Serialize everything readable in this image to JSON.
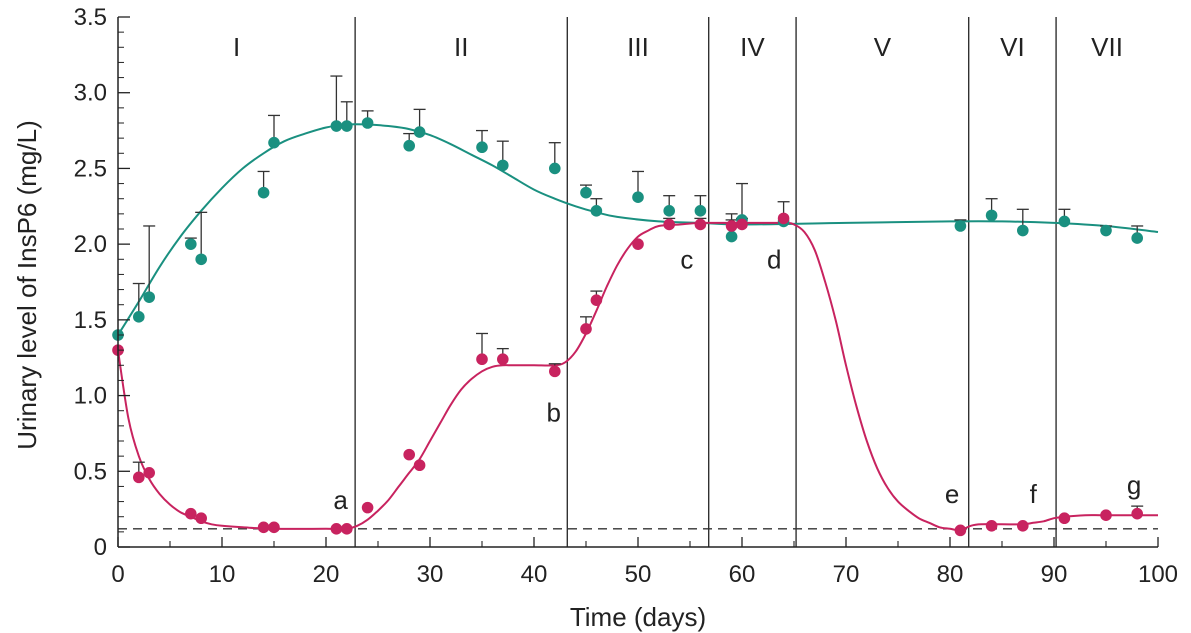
{
  "chart_data": {
    "type": "scatter",
    "title": "",
    "xlabel": "Time (days)",
    "ylabel": "Urinary level of InsP6 (mg/L)",
    "xlim": [
      0,
      100
    ],
    "ylim": [
      0,
      3.5
    ],
    "x_ticks": [
      0,
      10,
      20,
      30,
      40,
      50,
      60,
      70,
      80,
      90,
      100
    ],
    "y_ticks": [
      0,
      0.5,
      1.0,
      1.5,
      2.0,
      2.5,
      3.0,
      3.5
    ],
    "x_tick_labels": [
      "0",
      "10",
      "20",
      "30",
      "40",
      "50",
      "60",
      "70",
      "80",
      "90",
      "100"
    ],
    "y_tick_labels": [
      "0",
      "0.5",
      "1.0",
      "1.5",
      "2.0",
      "2.5",
      "3.0",
      "3.5"
    ],
    "grid": false,
    "legend": "none",
    "baseline": {
      "y": 0.12,
      "style": "dashed"
    },
    "phases": [
      {
        "label": "I",
        "start": 0,
        "end": 22.8
      },
      {
        "label": "II",
        "start": 22.8,
        "end": 43.2
      },
      {
        "label": "III",
        "start": 43.2,
        "end": 56.8
      },
      {
        "label": "IV",
        "start": 56.8,
        "end": 65.2
      },
      {
        "label": "V",
        "start": 65.2,
        "end": 81.8
      },
      {
        "label": "VI",
        "start": 81.8,
        "end": 90.2
      },
      {
        "label": "VII",
        "start": 90.2,
        "end": 100
      }
    ],
    "series": [
      {
        "color": "#1a9080",
        "points": [
          {
            "x": 0,
            "y": 1.4,
            "err": 0
          },
          {
            "x": 2,
            "y": 1.52,
            "err": 0.22
          },
          {
            "x": 3,
            "y": 1.65,
            "err": 0.47
          },
          {
            "x": 7,
            "y": 2.0,
            "err": 0.04
          },
          {
            "x": 8,
            "y": 1.9,
            "err": 0.31
          },
          {
            "x": 14,
            "y": 2.34,
            "err": 0.14
          },
          {
            "x": 15,
            "y": 2.67,
            "err": 0.18
          },
          {
            "x": 21,
            "y": 2.78,
            "err": 0.33
          },
          {
            "x": 22,
            "y": 2.78,
            "err": 0.16
          },
          {
            "x": 24,
            "y": 2.8,
            "err": 0.08
          },
          {
            "x": 28,
            "y": 2.65,
            "err": 0.08
          },
          {
            "x": 29,
            "y": 2.74,
            "err": 0.15
          },
          {
            "x": 35,
            "y": 2.64,
            "err": 0.11
          },
          {
            "x": 37,
            "y": 2.52,
            "err": 0.16
          },
          {
            "x": 42,
            "y": 2.5,
            "err": 0.17
          },
          {
            "x": 45,
            "y": 2.34,
            "err": 0.05
          },
          {
            "x": 46,
            "y": 2.22,
            "err": 0.08
          },
          {
            "x": 50,
            "y": 2.31,
            "err": 0.17
          },
          {
            "x": 53,
            "y": 2.22,
            "err": 0.1
          },
          {
            "x": 56,
            "y": 2.22,
            "err": 0.1
          },
          {
            "x": 59,
            "y": 2.05,
            "err": 0.15
          },
          {
            "x": 60,
            "y": 2.16,
            "err": 0.24
          },
          {
            "x": 64,
            "y": 2.15,
            "err": 0.13
          },
          {
            "x": 81,
            "y": 2.12,
            "err": 0.04
          },
          {
            "x": 84,
            "y": 2.19,
            "err": 0.11
          },
          {
            "x": 87,
            "y": 2.09,
            "err": 0.14
          },
          {
            "x": 91,
            "y": 2.15,
            "err": 0.08
          },
          {
            "x": 95,
            "y": 2.09,
            "err": 0.03
          },
          {
            "x": 98,
            "y": 2.04,
            "err": 0.08
          }
        ],
        "curve": [
          [
            0,
            1.4
          ],
          [
            2,
            1.62
          ],
          [
            4,
            1.85
          ],
          [
            6,
            2.05
          ],
          [
            8,
            2.22
          ],
          [
            10,
            2.37
          ],
          [
            12,
            2.5
          ],
          [
            14,
            2.6
          ],
          [
            16,
            2.68
          ],
          [
            18,
            2.73
          ],
          [
            20,
            2.77
          ],
          [
            22,
            2.79
          ],
          [
            24,
            2.79
          ],
          [
            26,
            2.78
          ],
          [
            28,
            2.76
          ],
          [
            30,
            2.72
          ],
          [
            32,
            2.66
          ],
          [
            34,
            2.59
          ],
          [
            36,
            2.52
          ],
          [
            38,
            2.44
          ],
          [
            40,
            2.36
          ],
          [
            42,
            2.3
          ],
          [
            44,
            2.25
          ],
          [
            46,
            2.21
          ],
          [
            48,
            2.18
          ],
          [
            52,
            2.15
          ],
          [
            56,
            2.14
          ],
          [
            60,
            2.13
          ],
          [
            70,
            2.14
          ],
          [
            80,
            2.15
          ],
          [
            85,
            2.15
          ],
          [
            90,
            2.14
          ],
          [
            95,
            2.12
          ],
          [
            100,
            2.08
          ]
        ]
      },
      {
        "color": "#c8235f",
        "points": [
          {
            "x": 0,
            "y": 1.3,
            "err": 0
          },
          {
            "x": 2,
            "y": 0.46,
            "err": 0.1
          },
          {
            "x": 3,
            "y": 0.49,
            "err": 0
          },
          {
            "x": 7,
            "y": 0.22,
            "err": 0
          },
          {
            "x": 8,
            "y": 0.19,
            "err": 0
          },
          {
            "x": 14,
            "y": 0.13,
            "err": 0
          },
          {
            "x": 15,
            "y": 0.13,
            "err": 0
          },
          {
            "x": 21,
            "y": 0.12,
            "err": 0
          },
          {
            "x": 22,
            "y": 0.12,
            "err": 0
          },
          {
            "x": 24,
            "y": 0.26,
            "err": 0
          },
          {
            "x": 28,
            "y": 0.61,
            "err": 0
          },
          {
            "x": 29,
            "y": 0.54,
            "err": 0
          },
          {
            "x": 35,
            "y": 1.24,
            "err": 0.17
          },
          {
            "x": 37,
            "y": 1.24,
            "err": 0.07
          },
          {
            "x": 42,
            "y": 1.16,
            "err": 0.05
          },
          {
            "x": 45,
            "y": 1.44,
            "err": 0.08
          },
          {
            "x": 46,
            "y": 1.63,
            "err": 0.06
          },
          {
            "x": 50,
            "y": 2.0,
            "err": 0
          },
          {
            "x": 53,
            "y": 2.13,
            "err": 0.04
          },
          {
            "x": 56,
            "y": 2.13,
            "err": 0.04
          },
          {
            "x": 59,
            "y": 2.12,
            "err": 0.04
          },
          {
            "x": 60,
            "y": 2.13,
            "err": 0.04
          },
          {
            "x": 64,
            "y": 2.17,
            "err": 0
          },
          {
            "x": 81,
            "y": 0.11,
            "err": 0
          },
          {
            "x": 84,
            "y": 0.14,
            "err": 0
          },
          {
            "x": 87,
            "y": 0.14,
            "err": 0
          },
          {
            "x": 91,
            "y": 0.19,
            "err": 0
          },
          {
            "x": 95,
            "y": 0.21,
            "err": 0
          },
          {
            "x": 98,
            "y": 0.22,
            "err": 0.05
          }
        ],
        "curve": [
          [
            0,
            1.3
          ],
          [
            1,
            0.85
          ],
          [
            2,
            0.6
          ],
          [
            3,
            0.45
          ],
          [
            4,
            0.35
          ],
          [
            5,
            0.28
          ],
          [
            6,
            0.23
          ],
          [
            7,
            0.2
          ],
          [
            8,
            0.17
          ],
          [
            9,
            0.15
          ],
          [
            10,
            0.14
          ],
          [
            12,
            0.13
          ],
          [
            15,
            0.12
          ],
          [
            20,
            0.12
          ],
          [
            22,
            0.12
          ],
          [
            23,
            0.14
          ],
          [
            24,
            0.18
          ],
          [
            25,
            0.24
          ],
          [
            26,
            0.31
          ],
          [
            27,
            0.4
          ],
          [
            28,
            0.49
          ],
          [
            29,
            0.58
          ],
          [
            30,
            0.7
          ],
          [
            31,
            0.82
          ],
          [
            32,
            0.94
          ],
          [
            33,
            1.04
          ],
          [
            34,
            1.11
          ],
          [
            35,
            1.16
          ],
          [
            36,
            1.19
          ],
          [
            37,
            1.2
          ],
          [
            38,
            1.2
          ],
          [
            40,
            1.2
          ],
          [
            42,
            1.2
          ],
          [
            43,
            1.22
          ],
          [
            44,
            1.29
          ],
          [
            45,
            1.41
          ],
          [
            46,
            1.56
          ],
          [
            47,
            1.72
          ],
          [
            48,
            1.86
          ],
          [
            49,
            1.97
          ],
          [
            50,
            2.05
          ],
          [
            51,
            2.09
          ],
          [
            52,
            2.12
          ],
          [
            54,
            2.13
          ],
          [
            56,
            2.14
          ],
          [
            60,
            2.14
          ],
          [
            64,
            2.14
          ],
          [
            65,
            2.13
          ],
          [
            66,
            2.08
          ],
          [
            67,
            1.96
          ],
          [
            68,
            1.75
          ],
          [
            69,
            1.5
          ],
          [
            70,
            1.2
          ],
          [
            71,
            0.93
          ],
          [
            72,
            0.7
          ],
          [
            73,
            0.52
          ],
          [
            74,
            0.39
          ],
          [
            75,
            0.3
          ],
          [
            76,
            0.24
          ],
          [
            77,
            0.19
          ],
          [
            78,
            0.16
          ],
          [
            79,
            0.13
          ],
          [
            80,
            0.12
          ],
          [
            81,
            0.11
          ],
          [
            82,
            0.14
          ],
          [
            83,
            0.15
          ],
          [
            85,
            0.15
          ],
          [
            87,
            0.15
          ],
          [
            88,
            0.16
          ],
          [
            89,
            0.17
          ],
          [
            90,
            0.19
          ],
          [
            91,
            0.2
          ],
          [
            93,
            0.21
          ],
          [
            95,
            0.21
          ],
          [
            100,
            0.21
          ]
        ]
      }
    ],
    "annotations": [
      {
        "text": "a",
        "x": 21.4,
        "y": 0.25
      },
      {
        "text": "b",
        "x": 41.9,
        "y": 0.83
      },
      {
        "text": "c",
        "x": 54.7,
        "y": 1.84
      },
      {
        "text": "d",
        "x": 63.1,
        "y": 1.84
      },
      {
        "text": "e",
        "x": 80.2,
        "y": 0.29
      },
      {
        "text": "f",
        "x": 88.0,
        "y": 0.29
      },
      {
        "text": "g",
        "x": 97.7,
        "y": 0.35
      }
    ]
  }
}
